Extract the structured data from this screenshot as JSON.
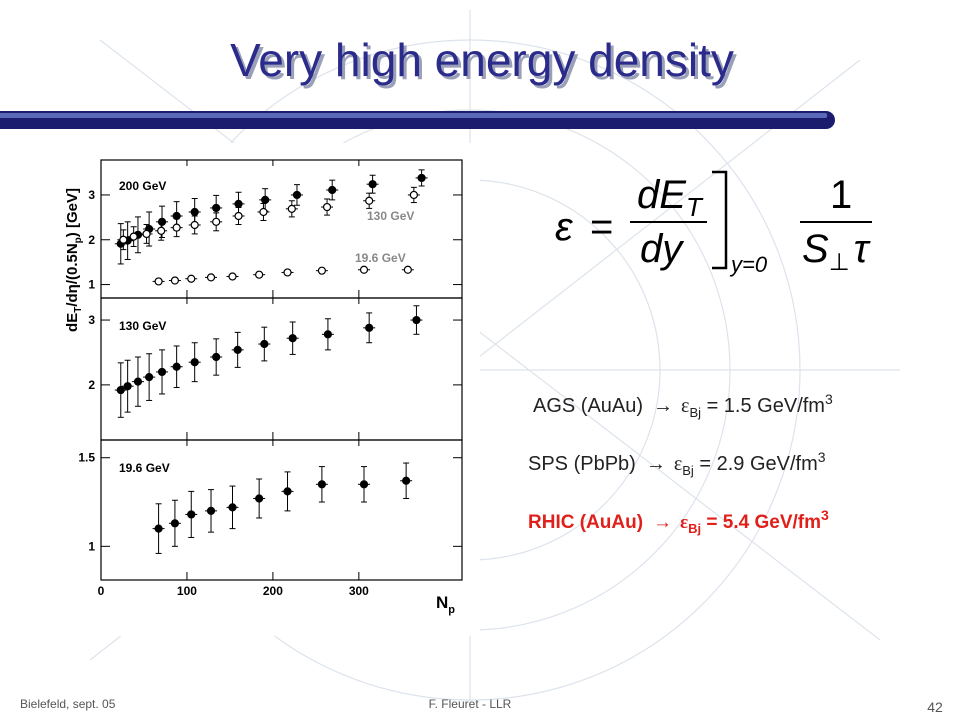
{
  "title": "Very high energy density",
  "figure": {
    "type": "scatter",
    "y_label_parts": [
      "dE",
      "T",
      "/dη/(0.5N",
      "p",
      ") [GeV]"
    ],
    "x_label": "N",
    "x_label_sub": "p",
    "xlim": [
      0,
      420
    ],
    "xticks": [
      0,
      100,
      200,
      300
    ],
    "panels": [
      {
        "ylim": [
          0.7,
          3.78
        ],
        "yticks": [
          1,
          2,
          3
        ],
        "series": [
          {
            "name": "200 GeV",
            "marker": "filled",
            "label_color": "#000000",
            "x": [
              23,
              31,
              43,
              56,
              71,
              88,
              109,
              134,
              160,
              191,
              228,
              269,
              316,
              373
            ],
            "values": [
              1.91,
              1.98,
              2.11,
              2.24,
              2.4,
              2.53,
              2.62,
              2.71,
              2.8,
              2.89,
              3.0,
              3.11,
              3.24,
              3.38
            ],
            "errors": [
              0.45,
              0.42,
              0.4,
              0.38,
              0.35,
              0.32,
              0.3,
              0.28,
              0.26,
              0.25,
              0.23,
              0.22,
              0.2,
              0.18
            ]
          },
          {
            "name": "130 GeV",
            "marker": "open",
            "label_color": "#888888",
            "x": [
              26,
              38,
              53,
              70,
              88,
              109,
              134,
              160,
              189,
              222,
              263,
              312,
              364
            ],
            "values": [
              2.0,
              2.07,
              2.13,
              2.2,
              2.27,
              2.33,
              2.4,
              2.53,
              2.62,
              2.69,
              2.73,
              2.87,
              3.0
            ],
            "errors": [
              0.22,
              0.22,
              0.21,
              0.21,
              0.2,
              0.2,
              0.2,
              0.19,
              0.19,
              0.18,
              0.18,
              0.17,
              0.17
            ]
          },
          {
            "name": "19.6 GeV",
            "marker": "open",
            "label_color": "#888888",
            "x": [
              67,
              86,
              105,
              128,
              153,
              184,
              217,
              257,
              306,
              357
            ],
            "values": [
              1.07,
              1.09,
              1.13,
              1.16,
              1.18,
              1.22,
              1.27,
              1.31,
              1.33,
              1.33
            ]
          }
        ]
      },
      {
        "ylim": [
          1.15,
          3.34
        ],
        "yticks": [
          2,
          3
        ],
        "series": [
          {
            "name": "130 GeV",
            "marker": "filled",
            "label_color": "#000000",
            "x": [
              23,
              31,
              43,
              56,
              71,
              88,
              109,
              134,
              159,
              190,
              223,
              264,
              312,
              367
            ],
            "values": [
              1.92,
              1.98,
              2.05,
              2.12,
              2.2,
              2.28,
              2.35,
              2.43,
              2.54,
              2.63,
              2.72,
              2.78,
              2.88,
              3.0
            ],
            "errors": [
              0.42,
              0.4,
              0.38,
              0.36,
              0.34,
              0.32,
              0.3,
              0.28,
              0.27,
              0.26,
              0.25,
              0.24,
              0.23,
              0.22
            ]
          }
        ]
      },
      {
        "ylim": [
          0.81,
          1.6
        ],
        "yticks": [
          1,
          1.5
        ],
        "series": [
          {
            "name": "19.6 GeV",
            "marker": "filled",
            "label_color": "#000000",
            "x": [
              67,
              86,
              105,
              128,
              153,
              184,
              217,
              257,
              306,
              355
            ],
            "values": [
              1.1,
              1.13,
              1.18,
              1.2,
              1.22,
              1.27,
              1.31,
              1.35,
              1.35,
              1.37
            ],
            "errors": [
              0.14,
              0.13,
              0.13,
              0.12,
              0.12,
              0.11,
              0.11,
              0.1,
              0.1,
              0.1
            ]
          }
        ]
      }
    ]
  },
  "formula": {
    "epsilon": "ε",
    "equals": "=",
    "numerator": "dE",
    "numerator_sub": "T",
    "denominator": "dy",
    "condition": "y=0",
    "one": "1",
    "area": "S",
    "area_sub": "⊥",
    "tau": "τ"
  },
  "results": [
    {
      "system": "AGS (AuAu)",
      "arrow": "→",
      "symbol": "ε",
      "sub": "Bj",
      "value_text": " = 1.5 GeV/fm",
      "sup": "3"
    },
    {
      "system": "SPS (PbPb)",
      "arrow": "→",
      "symbol": "ε",
      "sub": "Bj",
      "value_text": " = 2.9 GeV/fm",
      "sup": "3"
    },
    {
      "system": "RHIC (AuAu)",
      "arrow": "→",
      "symbol": "ε",
      "sub": "Bj",
      "value_text": " = 5.4 GeV/fm",
      "sup": "3"
    }
  ],
  "footer": {
    "left": "Bielefeld, sept. 05",
    "center": "F. Fleuret - LLR",
    "page": "42"
  }
}
